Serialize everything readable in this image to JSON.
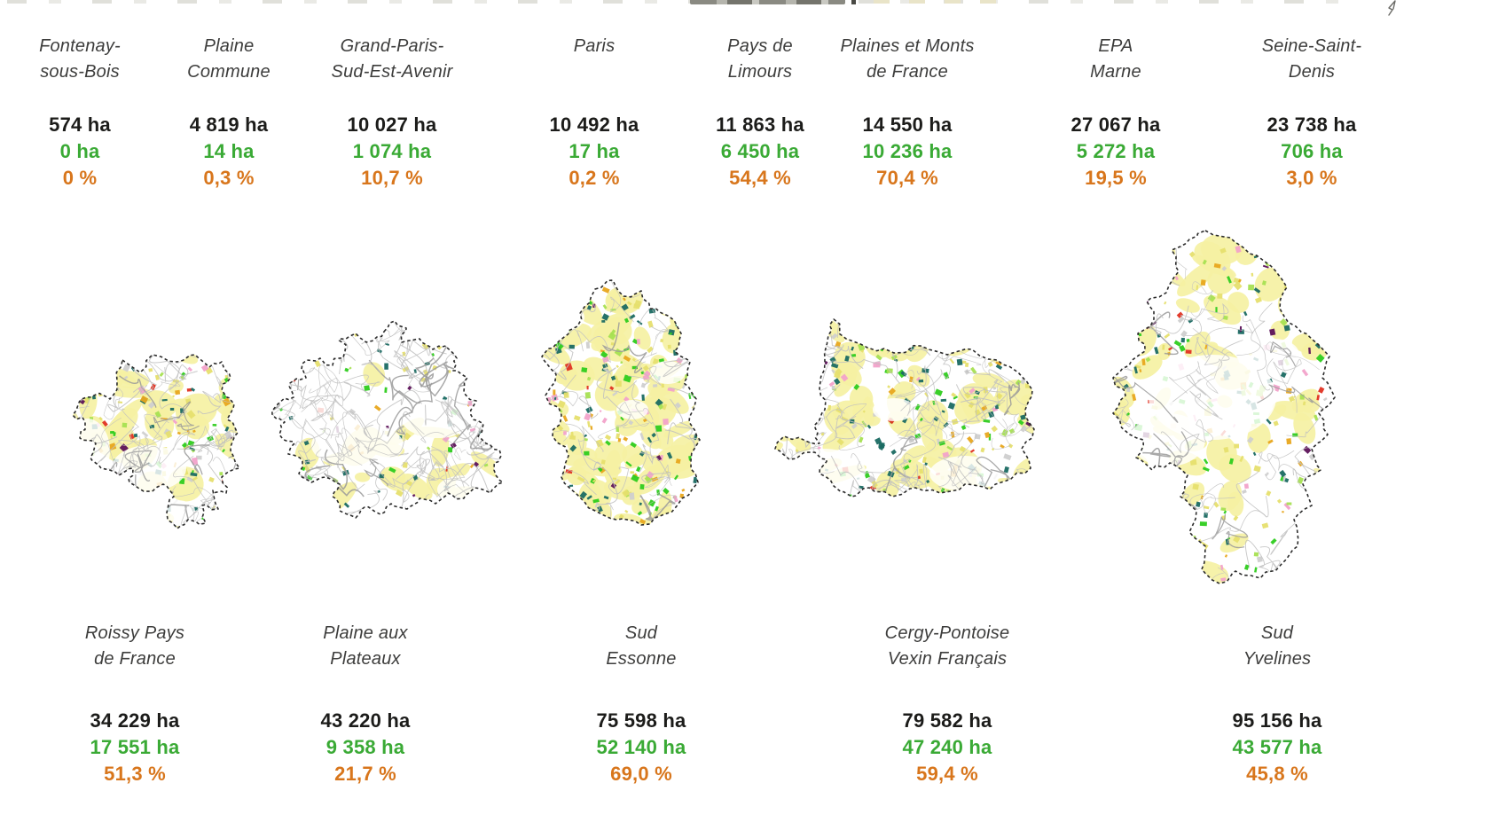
{
  "colors": {
    "total_area_text": "#1c1c1a",
    "agricultural_area_text": "#3aaa35",
    "percent_text": "#d8761c",
    "territory_name_text": "#3d3d3c",
    "map_boundary": "#2b2b2b",
    "map_farmland_yellow": "#f5f1a3",
    "map_bright_green": "#2ecc1e",
    "map_dark_teal": "#1a6a62",
    "map_orange": "#e8a61e",
    "map_roads_gray": "#bdbdbd"
  },
  "icons": {
    "cursor_doodle": "hand-drawn cursor scribble (cropped)"
  },
  "top_row": [
    {
      "name1": "Fontenay-",
      "name2": "sous-Bois",
      "total": "574 ha",
      "agri": "0 ha",
      "pct": "0 %"
    },
    {
      "name1": "Plaine",
      "name2": "Commune",
      "total": "4 819 ha",
      "agri": "14 ha",
      "pct": "0,3 %"
    },
    {
      "name1": "Grand-Paris-",
      "name2": "Sud-Est-Avenir",
      "total": "10 027 ha",
      "agri": "1 074 ha",
      "pct": "10,7 %"
    },
    {
      "name1": "Paris",
      "name2": "",
      "total": "10 492 ha",
      "agri": "17 ha",
      "pct": "0,2 %"
    },
    {
      "name1": "Pays de",
      "name2": "Limours",
      "total": "11 863 ha",
      "agri": "6 450 ha",
      "pct": "54,4 %"
    },
    {
      "name1": "Plaines et Monts",
      "name2": "de France",
      "total": "14 550 ha",
      "agri": "10 236 ha",
      "pct": "70,4 %"
    },
    {
      "name1": "EPA",
      "name2": "Marne",
      "total": "27 067 ha",
      "agri": "5 272 ha",
      "pct": "19,5 %"
    },
    {
      "name1": "Seine-Saint-",
      "name2": "Denis",
      "total": "23 738 ha",
      "agri": "706 ha",
      "pct": "3,0 %"
    }
  ],
  "bottom_row": [
    {
      "name1": "Roissy Pays",
      "name2": "de France",
      "total": "34 229 ha",
      "agri": "17 551 ha",
      "pct": "51,3 %"
    },
    {
      "name1": "Plaine aux",
      "name2": "Plateaux",
      "total": "43 220 ha",
      "agri": "9 358 ha",
      "pct": "21,7 %"
    },
    {
      "name1": "Sud",
      "name2": "Essonne",
      "total": "75 598 ha",
      "agri": "52 140 ha",
      "pct": "69,0 %"
    },
    {
      "name1": "Cergy-Pontoise",
      "name2": "Vexin Français",
      "total": "79 582 ha",
      "agri": "47 240 ha",
      "pct": "59,4 %"
    },
    {
      "name1": "Sud",
      "name2": "Yvelines",
      "total": "95 156 ha",
      "agri": "43 577 ha",
      "pct": "45,8 %"
    }
  ],
  "chart_data": {
    "type": "table",
    "columns": [
      "territory",
      "total_area_ha",
      "agricultural_area_ha",
      "agricultural_share_pct"
    ],
    "rows": [
      [
        "Fontenay-sous-Bois",
        574,
        0,
        0
      ],
      [
        "Plaine Commune",
        4819,
        14,
        0.3
      ],
      [
        "Grand-Paris-Sud-Est-Avenir",
        10027,
        1074,
        10.7
      ],
      [
        "Paris",
        10492,
        17,
        0.2
      ],
      [
        "Pays de Limours",
        11863,
        6450,
        54.4
      ],
      [
        "Plaines et Monts de France",
        14550,
        10236,
        70.4
      ],
      [
        "EPA Marne",
        27067,
        5272,
        19.5
      ],
      [
        "Seine-Saint-Denis",
        23738,
        706,
        3.0
      ],
      [
        "Roissy Pays de France",
        34229,
        17551,
        51.3
      ],
      [
        "Plaine aux Plateaux",
        43220,
        9358,
        21.7
      ],
      [
        "Sud Essonne",
        75598,
        52140,
        69.0
      ],
      [
        "Cergy-Pontoise Vexin Français",
        79582,
        47240,
        59.4
      ],
      [
        "Sud Yvelines",
        95156,
        43577,
        45.8
      ]
    ],
    "legend_position": "none",
    "notes": "Small-multiple territory maps; black = total area, green = agricultural area, orange = agricultural share"
  }
}
